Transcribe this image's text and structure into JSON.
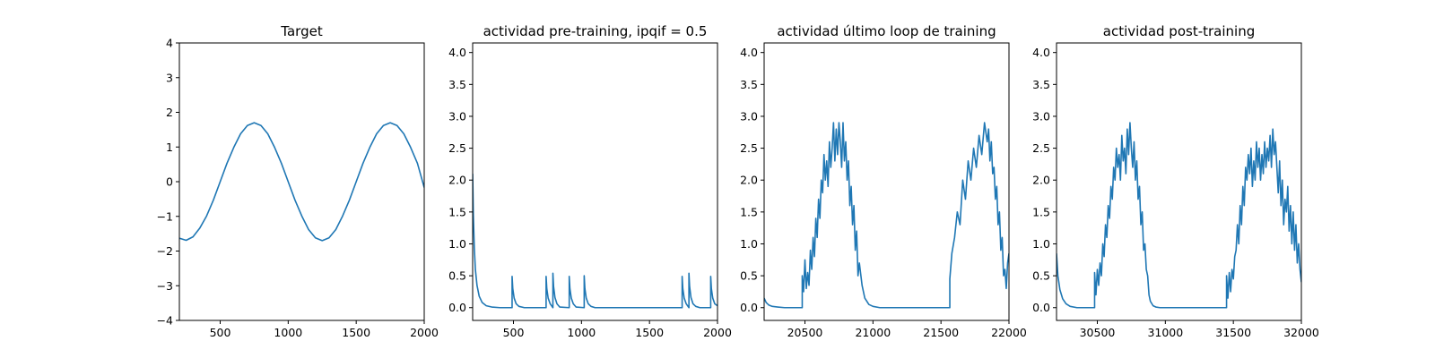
{
  "figure": {
    "line_color": "#1f77b4"
  },
  "chart_data": [
    {
      "type": "line",
      "title": "Target",
      "xlabel": "",
      "ylabel": "",
      "xlim": [
        200,
        2000
      ],
      "ylim": [
        -4,
        4
      ],
      "xticks": [
        500,
        1000,
        1500,
        2000
      ],
      "yticks": [
        -4,
        -3,
        -2,
        -1,
        0,
        1,
        2,
        3,
        4
      ],
      "ytick_labels": [
        "−4",
        "−3",
        "−2",
        "−1",
        "0",
        "1",
        "2",
        "3",
        "4"
      ],
      "grid": false,
      "series": [
        {
          "x": [
            200,
            250,
            300,
            350,
            400,
            450,
            500,
            550,
            600,
            650,
            700,
            750,
            800,
            850,
            900,
            950,
            1000,
            1050,
            1100,
            1150,
            1200,
            1250,
            1300,
            1350,
            1400,
            1450,
            1500,
            1550,
            1600,
            1650,
            1700,
            1750,
            1800,
            1850,
            1900,
            1950,
            2000
          ],
          "values": [
            -1.63,
            -1.69,
            -1.59,
            -1.34,
            -0.99,
            -0.53,
            0.0,
            0.53,
            0.99,
            1.38,
            1.62,
            1.7,
            1.62,
            1.38,
            0.99,
            0.53,
            0.0,
            -0.53,
            -0.99,
            -1.38,
            -1.62,
            -1.7,
            -1.62,
            -1.38,
            -0.99,
            -0.53,
            0.0,
            0.53,
            0.99,
            1.38,
            1.62,
            1.7,
            1.62,
            1.38,
            0.99,
            0.53,
            -0.17
          ]
        }
      ]
    },
    {
      "type": "line",
      "title": "actividad pre-training, ipqif = 0.5",
      "xlabel": "",
      "ylabel": "",
      "xlim": [
        200,
        2000
      ],
      "ylim": [
        -0.2,
        4.15
      ],
      "xticks": [
        500,
        1000,
        1500,
        2000
      ],
      "yticks": [
        0.0,
        0.5,
        1.0,
        1.5,
        2.0,
        2.5,
        3.0,
        3.5,
        4.0
      ],
      "ytick_labels": [
        "0.0",
        "0.5",
        "1.0",
        "1.5",
        "2.0",
        "2.5",
        "3.0",
        "3.5",
        "4.0"
      ],
      "grid": false,
      "series": [
        {
          "x": [
            200,
            205,
            212,
            220,
            232,
            248,
            270,
            300,
            340,
            400,
            490,
            490,
            495,
            505,
            520,
            540,
            580,
            740,
            740,
            745,
            755,
            770,
            790,
            790,
            795,
            805,
            820,
            840,
            910,
            910,
            915,
            925,
            940,
            960,
            1020,
            1020,
            1025,
            1035,
            1050,
            1070,
            1100,
            1740,
            1740,
            1745,
            1755,
            1770,
            1790,
            1790,
            1795,
            1805,
            1820,
            1840,
            1870,
            1950,
            1950,
            1955,
            1965,
            1980,
            2000
          ],
          "values": [
            2.1,
            1.45,
            0.95,
            0.6,
            0.35,
            0.18,
            0.08,
            0.03,
            0.01,
            0.0,
            0.0,
            0.49,
            0.3,
            0.15,
            0.06,
            0.02,
            0.0,
            0.0,
            0.49,
            0.3,
            0.15,
            0.06,
            0.0,
            0.54,
            0.33,
            0.16,
            0.06,
            0.01,
            0.0,
            0.49,
            0.3,
            0.15,
            0.06,
            0.01,
            0.0,
            0.5,
            0.3,
            0.15,
            0.06,
            0.02,
            0.0,
            0.0,
            0.49,
            0.3,
            0.15,
            0.06,
            0.0,
            0.54,
            0.33,
            0.16,
            0.06,
            0.02,
            0.0,
            0.0,
            0.49,
            0.3,
            0.15,
            0.06,
            0.03
          ]
        }
      ]
    },
    {
      "type": "line",
      "title": "actividad último loop de training",
      "xlabel": "",
      "ylabel": "",
      "xlim": [
        20200,
        22000
      ],
      "ylim": [
        -0.2,
        4.15
      ],
      "xticks": [
        20500,
        21000,
        21500,
        22000
      ],
      "yticks": [
        0.0,
        0.5,
        1.0,
        1.5,
        2.0,
        2.5,
        3.0,
        3.5,
        4.0
      ],
      "ytick_labels": [
        "0.0",
        "0.5",
        "1.0",
        "1.5",
        "2.0",
        "2.5",
        "3.0",
        "3.5",
        "4.0"
      ],
      "grid": false,
      "series": [
        {
          "x": [
            20200,
            20215,
            20235,
            20260,
            20300,
            20350,
            20400,
            20480,
            20480,
            20490,
            20500,
            20510,
            20520,
            20530,
            20540,
            20550,
            20560,
            20570,
            20580,
            20590,
            20600,
            20610,
            20620,
            20630,
            20640,
            20650,
            20660,
            20670,
            20680,
            20690,
            20700,
            20710,
            20720,
            20730,
            20740,
            20750,
            20760,
            20770,
            20780,
            20790,
            20800,
            20810,
            20820,
            20830,
            20840,
            20850,
            20860,
            20870,
            20880,
            20890,
            20900,
            20920,
            20940,
            20970,
            21000,
            21050,
            21100,
            21565,
            21565,
            21580,
            21600,
            21620,
            21640,
            21660,
            21680,
            21700,
            21720,
            21740,
            21760,
            21780,
            21800,
            21820,
            21840,
            21850,
            21860,
            21870,
            21880,
            21890,
            21900,
            21910,
            21920,
            21930,
            21940,
            21950,
            21960,
            21970,
            21980,
            21990,
            22000
          ],
          "values": [
            0.15,
            0.08,
            0.04,
            0.02,
            0.01,
            0.0,
            0.0,
            0.0,
            0.5,
            0.25,
            0.75,
            0.3,
            0.55,
            0.35,
            0.9,
            0.6,
            1.1,
            0.8,
            1.4,
            1.1,
            1.7,
            1.4,
            2.0,
            1.8,
            2.4,
            2.0,
            2.3,
            1.9,
            2.6,
            2.2,
            2.5,
            2.9,
            2.3,
            2.8,
            2.4,
            2.9,
            2.6,
            2.2,
            2.9,
            2.3,
            2.6,
            2.0,
            2.3,
            1.6,
            1.9,
            1.3,
            1.6,
            0.9,
            1.2,
            0.5,
            0.7,
            0.35,
            0.15,
            0.05,
            0.02,
            0.0,
            0.0,
            0.0,
            0.45,
            0.85,
            1.1,
            1.5,
            1.3,
            2.0,
            1.7,
            2.3,
            2.0,
            2.5,
            2.2,
            2.7,
            2.4,
            2.9,
            2.6,
            2.8,
            2.3,
            2.6,
            2.1,
            2.2,
            1.7,
            1.9,
            1.3,
            1.5,
            0.9,
            1.1,
            0.5,
            0.6,
            0.3,
            0.7,
            0.85
          ]
        }
      ]
    },
    {
      "type": "line",
      "title": "actividad post-training",
      "xlabel": "",
      "ylabel": "",
      "xlim": [
        30200,
        32000
      ],
      "ylim": [
        -0.2,
        4.15
      ],
      "xticks": [
        30500,
        31000,
        31500,
        32000
      ],
      "yticks": [
        0.0,
        0.5,
        1.0,
        1.5,
        2.0,
        2.5,
        3.0,
        3.5,
        4.0
      ],
      "ytick_labels": [
        "0.0",
        "0.5",
        "1.0",
        "1.5",
        "2.0",
        "2.5",
        "3.0",
        "3.5",
        "4.0"
      ],
      "grid": false,
      "series": [
        {
          "x": [
            30200,
            30210,
            30225,
            30245,
            30270,
            30300,
            30350,
            30400,
            30480,
            30480,
            30490,
            30500,
            30510,
            30520,
            30530,
            30540,
            30550,
            30560,
            30570,
            30580,
            30590,
            30600,
            30610,
            30620,
            30630,
            30640,
            30650,
            30660,
            30670,
            30680,
            30690,
            30700,
            30710,
            30720,
            30730,
            30740,
            30750,
            30760,
            30770,
            30780,
            30790,
            30800,
            30810,
            30820,
            30830,
            30840,
            30850,
            30860,
            30870,
            30880,
            30890,
            30910,
            30930,
            30960,
            31000,
            31050,
            31100,
            31450,
            31450,
            31460,
            31470,
            31480,
            31490,
            31500,
            31510,
            31520,
            31530,
            31540,
            31550,
            31560,
            31570,
            31580,
            31590,
            31600,
            31610,
            31620,
            31630,
            31640,
            31650,
            31660,
            31670,
            31680,
            31690,
            31700,
            31710,
            31720,
            31730,
            31740,
            31750,
            31760,
            31770,
            31780,
            31790,
            31800,
            31810,
            31820,
            31830,
            31840,
            31850,
            31860,
            31870,
            31880,
            31890,
            31900,
            31910,
            31920,
            31930,
            31940,
            31950,
            31960,
            31970,
            31980,
            31990,
            32000
          ],
          "values": [
            0.85,
            0.5,
            0.28,
            0.14,
            0.06,
            0.02,
            0.0,
            0.0,
            0.0,
            0.55,
            0.2,
            0.6,
            0.35,
            0.7,
            0.5,
            1.0,
            0.8,
            1.3,
            1.1,
            1.6,
            1.4,
            1.9,
            1.7,
            2.2,
            2.0,
            2.5,
            2.2,
            2.4,
            2.0,
            2.7,
            2.3,
            2.5,
            2.1,
            2.8,
            2.4,
            2.9,
            2.5,
            2.2,
            2.6,
            2.0,
            2.3,
            1.7,
            1.9,
            1.3,
            1.5,
            0.9,
            1.0,
            0.6,
            0.5,
            0.2,
            0.1,
            0.03,
            0.01,
            0.0,
            0.0,
            0.0,
            0.0,
            0.0,
            0.5,
            0.15,
            0.55,
            0.25,
            0.6,
            0.45,
            0.8,
            0.9,
            1.3,
            1.0,
            1.6,
            1.3,
            1.9,
            1.6,
            2.2,
            2.0,
            2.4,
            2.1,
            2.5,
            1.9,
            2.3,
            2.0,
            2.6,
            2.2,
            2.5,
            2.0,
            2.4,
            2.1,
            2.6,
            2.2,
            2.5,
            2.3,
            2.7,
            2.2,
            2.8,
            2.4,
            2.6,
            2.2,
            1.8,
            2.3,
            1.6,
            2.0,
            1.3,
            1.7,
            1.5,
            1.9,
            1.2,
            1.6,
            1.0,
            1.5,
            0.9,
            1.3,
            0.7,
            1.0,
            0.6,
            0.4
          ]
        }
      ]
    }
  ]
}
